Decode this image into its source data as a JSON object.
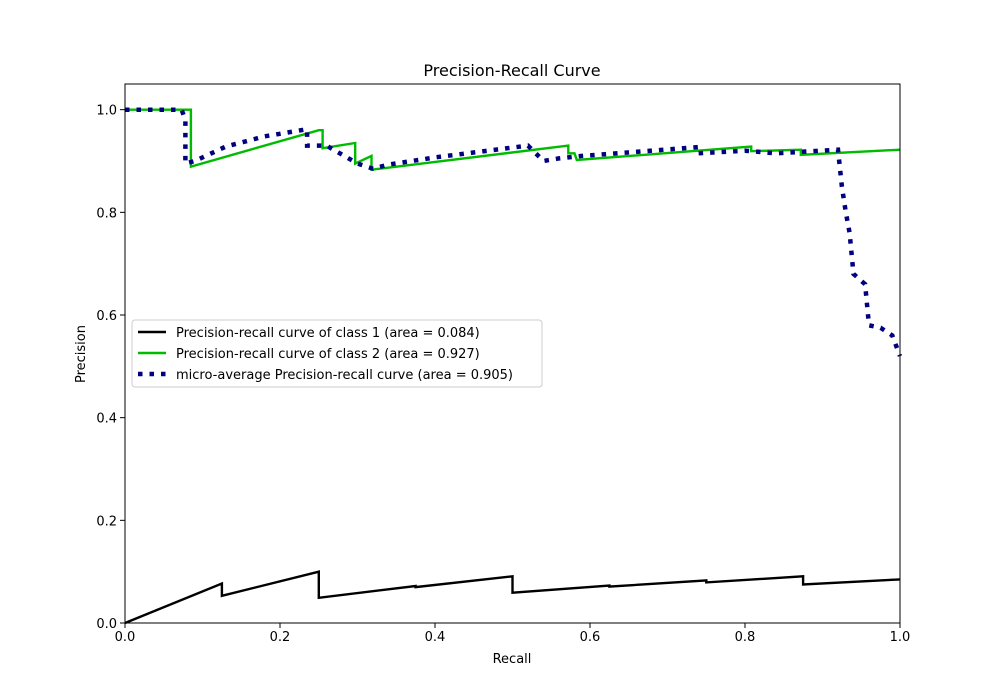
{
  "chart_data": {
    "type": "line",
    "title": "Precision-Recall Curve",
    "xlabel": "Recall",
    "ylabel": "Precision",
    "xlim": [
      0.0,
      1.0
    ],
    "ylim": [
      0.0,
      1.05
    ],
    "xticks": [
      "0.0",
      "0.2",
      "0.4",
      "0.6",
      "0.8",
      "1.0"
    ],
    "yticks": [
      "0.0",
      "0.2",
      "0.4",
      "0.6",
      "0.8",
      "1.0"
    ],
    "grid": false,
    "legend_position": "center-left",
    "series": [
      {
        "name": "Precision-recall curve of class 1 (area = 0.084)",
        "color": "#000000",
        "style": "solid",
        "points": [
          [
            0.0,
            0.0
          ],
          [
            0.125,
            0.077
          ],
          [
            0.125,
            0.053
          ],
          [
            0.25,
            0.1
          ],
          [
            0.25,
            0.049
          ],
          [
            0.375,
            0.072
          ],
          [
            0.375,
            0.07
          ],
          [
            0.5,
            0.091
          ],
          [
            0.5,
            0.059
          ],
          [
            0.625,
            0.073
          ],
          [
            0.625,
            0.071
          ],
          [
            0.75,
            0.083
          ],
          [
            0.75,
            0.079
          ],
          [
            0.875,
            0.091
          ],
          [
            0.875,
            0.075
          ],
          [
            1.0,
            0.085
          ]
        ]
      },
      {
        "name": "Precision-recall curve of class 2 (area = 0.927)",
        "color": "#00bb00",
        "style": "solid",
        "points": [
          [
            0.0,
            1.0
          ],
          [
            0.085,
            1.0
          ],
          [
            0.085,
            0.889
          ],
          [
            0.25,
            0.96
          ],
          [
            0.255,
            0.96
          ],
          [
            0.255,
            0.925
          ],
          [
            0.297,
            0.935
          ],
          [
            0.297,
            0.895
          ],
          [
            0.318,
            0.91
          ],
          [
            0.318,
            0.883
          ],
          [
            0.572,
            0.93
          ],
          [
            0.572,
            0.915
          ],
          [
            0.58,
            0.915
          ],
          [
            0.583,
            0.902
          ],
          [
            0.808,
            0.928
          ],
          [
            0.808,
            0.919
          ],
          [
            0.872,
            0.922
          ],
          [
            0.872,
            0.912
          ],
          [
            1.0,
            0.922
          ]
        ]
      },
      {
        "name": "micro-average Precision-recall curve (area = 0.905)",
        "color": "#000080",
        "style": "dotted",
        "points": [
          [
            0.0,
            1.0
          ],
          [
            0.073,
            1.0
          ],
          [
            0.078,
            0.98
          ],
          [
            0.078,
            0.895
          ],
          [
            0.09,
            0.9
          ],
          [
            0.13,
            0.928
          ],
          [
            0.18,
            0.948
          ],
          [
            0.235,
            0.962
          ],
          [
            0.235,
            0.93
          ],
          [
            0.26,
            0.93
          ],
          [
            0.3,
            0.895
          ],
          [
            0.32,
            0.885
          ],
          [
            0.34,
            0.893
          ],
          [
            0.4,
            0.907
          ],
          [
            0.52,
            0.93
          ],
          [
            0.54,
            0.9
          ],
          [
            0.56,
            0.905
          ],
          [
            0.59,
            0.91
          ],
          [
            0.74,
            0.927
          ],
          [
            0.74,
            0.915
          ],
          [
            0.8,
            0.92
          ],
          [
            0.84,
            0.915
          ],
          [
            0.92,
            0.922
          ],
          [
            0.925,
            0.85
          ],
          [
            0.93,
            0.8
          ],
          [
            0.935,
            0.76
          ],
          [
            0.94,
            0.68
          ],
          [
            0.955,
            0.66
          ],
          [
            0.96,
            0.58
          ],
          [
            0.975,
            0.575
          ],
          [
            0.99,
            0.56
          ],
          [
            1.0,
            0.52
          ]
        ]
      }
    ]
  }
}
